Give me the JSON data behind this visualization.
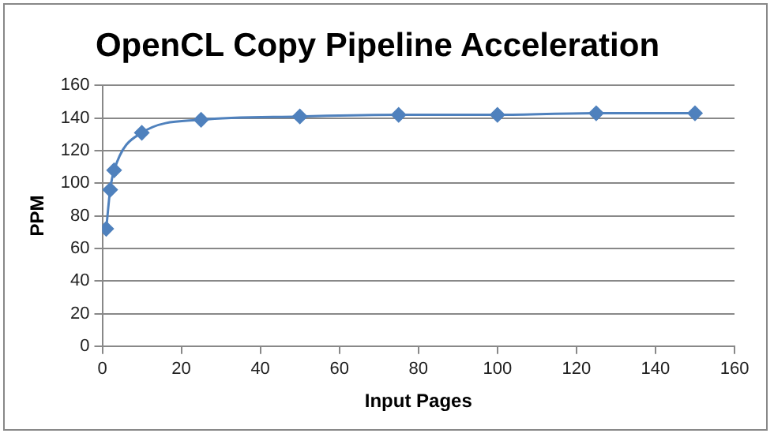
{
  "chart_data": {
    "type": "line",
    "title": "OpenCL Copy Pipeline Acceleration",
    "xlabel": "Input Pages",
    "ylabel": "PPM",
    "x": [
      1,
      2,
      3,
      10,
      25,
      50,
      75,
      100,
      125,
      150
    ],
    "series": [
      {
        "color": "#4f81bd",
        "values": [
          72,
          96,
          108,
          131,
          139,
          141,
          142,
          142,
          143,
          143
        ]
      }
    ],
    "xlim": [
      0,
      160
    ],
    "xticks": [
      0,
      20,
      40,
      60,
      80,
      100,
      120,
      140,
      160
    ],
    "ylim": [
      0,
      160
    ],
    "yticks": [
      0,
      20,
      40,
      60,
      80,
      100,
      120,
      140,
      160
    ],
    "grid": "y",
    "legend": false,
    "marker": "diamond",
    "line_style": "solid"
  }
}
